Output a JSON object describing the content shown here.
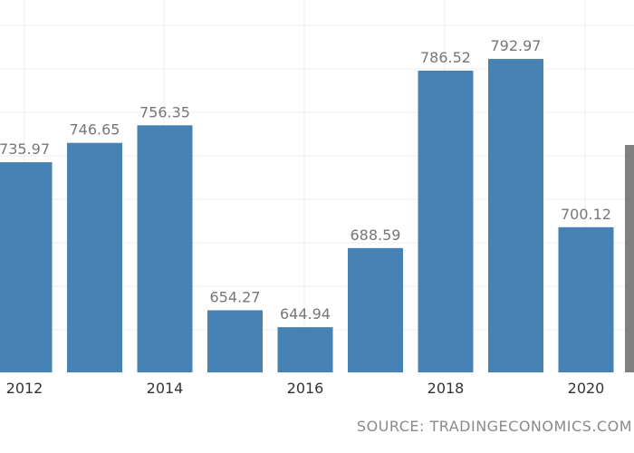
{
  "source": "SOURCE: TRADINGECONOMICS.COM",
  "colors": {
    "bar": "#4682b4",
    "highlight": "#808080",
    "label": "#777777",
    "grid": "#ececec",
    "axis_text": "#333333"
  },
  "chart_data": {
    "type": "bar",
    "categories": [
      "2012",
      "2013",
      "2014",
      "2015",
      "2016",
      "2017",
      "2018",
      "2019",
      "2020"
    ],
    "values": [
      735.97,
      746.65,
      756.35,
      654.27,
      644.94,
      688.59,
      786.52,
      792.97,
      700.12
    ],
    "x_tick_labels": [
      "2012",
      "2014",
      "2016",
      "2018",
      "2020"
    ],
    "data_labels": [
      "735.97",
      "746.65",
      "756.35",
      "654.27",
      "644.94",
      "688.59",
      "786.52",
      "792.97",
      "700.12"
    ],
    "extra_bar": {
      "color": "gray",
      "note": "partially visible at right edge"
    },
    "title": "",
    "xlabel": "",
    "ylabel": "",
    "grid": true
  }
}
